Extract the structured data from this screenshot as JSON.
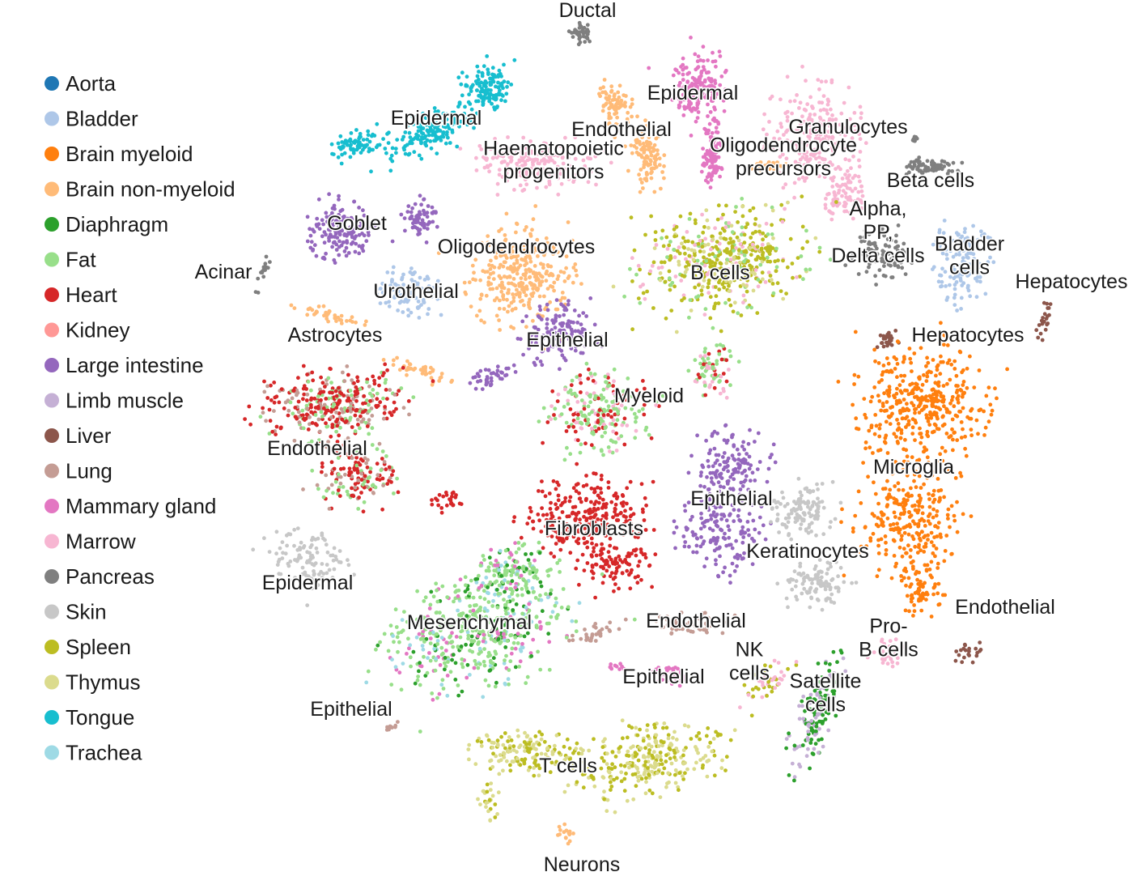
{
  "chart_data": {
    "type": "scatter",
    "title": "",
    "xlabel": "",
    "ylabel": "",
    "grid": false,
    "legend_position": "left",
    "series": [
      {
        "name": "Aorta",
        "color": "#1f77b4"
      },
      {
        "name": "Bladder",
        "color": "#aec7e8"
      },
      {
        "name": "Brain myeloid",
        "color": "#ff7f0e"
      },
      {
        "name": "Brain non-myeloid",
        "color": "#ffbb78"
      },
      {
        "name": "Diaphragm",
        "color": "#2ca02c"
      },
      {
        "name": "Fat",
        "color": "#98df8a"
      },
      {
        "name": "Heart",
        "color": "#d62728"
      },
      {
        "name": "Kidney",
        "color": "#ff9896"
      },
      {
        "name": "Large intestine",
        "color": "#9467bd"
      },
      {
        "name": "Limb muscle",
        "color": "#c5b0d5"
      },
      {
        "name": "Liver",
        "color": "#8c564b"
      },
      {
        "name": "Lung",
        "color": "#c49c94"
      },
      {
        "name": "Mammary gland",
        "color": "#e377c2"
      },
      {
        "name": "Marrow",
        "color": "#f7b6d2"
      },
      {
        "name": "Pancreas",
        "color": "#7f7f7f"
      },
      {
        "name": "Skin",
        "color": "#c7c7c7"
      },
      {
        "name": "Spleen",
        "color": "#bcbd22"
      },
      {
        "name": "Thymus",
        "color": "#dbdb8d"
      },
      {
        "name": "Tongue",
        "color": "#17becf"
      },
      {
        "name": "Trachea",
        "color": "#9edae5"
      }
    ],
    "clusters": [
      {
        "label": "Ductal",
        "tissues": [
          "Pancreas"
        ]
      },
      {
        "label": "Epidermal",
        "tissues": [
          "Tongue"
        ]
      },
      {
        "label": "Epidermal",
        "tissues": [
          "Mammary gland"
        ]
      },
      {
        "label": "Endothelial",
        "tissues": [
          "Brain non-myeloid"
        ]
      },
      {
        "label": "Granulocytes",
        "tissues": [
          "Marrow"
        ]
      },
      {
        "label": "Haematopoietic\nprogenitors",
        "tissues": [
          "Marrow"
        ]
      },
      {
        "label": "Oligodendrocyte\nprecursors",
        "tissues": [
          "Brain non-myeloid"
        ]
      },
      {
        "label": "Beta cells",
        "tissues": [
          "Pancreas"
        ]
      },
      {
        "label": "Goblet",
        "tissues": [
          "Large intestine"
        ]
      },
      {
        "label": "Oligodendrocytes",
        "tissues": [
          "Brain non-myeloid"
        ]
      },
      {
        "label": "Alpha,\nPP,\nDelta cells",
        "tissues": [
          "Pancreas"
        ]
      },
      {
        "label": "Bladder\ncells",
        "tissues": [
          "Bladder"
        ]
      },
      {
        "label": "Acinar",
        "tissues": [
          "Pancreas"
        ]
      },
      {
        "label": "B cells",
        "tissues": [
          "Spleen",
          "Marrow",
          "Fat",
          "Thymus"
        ]
      },
      {
        "label": "Hepatocytes",
        "tissues": [
          "Liver"
        ]
      },
      {
        "label": "Urothelial",
        "tissues": [
          "Bladder"
        ]
      },
      {
        "label": "Hepatocytes",
        "tissues": [
          "Liver"
        ]
      },
      {
        "label": "Astrocytes",
        "tissues": [
          "Brain non-myeloid"
        ]
      },
      {
        "label": "Epithelial",
        "tissues": [
          "Large intestine"
        ]
      },
      {
        "label": "Myeloid",
        "tissues": [
          "Fat",
          "Heart",
          "Marrow"
        ]
      },
      {
        "label": "Endothelial",
        "tissues": [
          "Heart",
          "Fat",
          "Lung"
        ]
      },
      {
        "label": "Microglia",
        "tissues": [
          "Brain myeloid"
        ]
      },
      {
        "label": "Epithelial",
        "tissues": [
          "Large intestine"
        ]
      },
      {
        "label": "Fibroblasts",
        "tissues": [
          "Heart"
        ]
      },
      {
        "label": "Keratinocytes",
        "tissues": [
          "Skin"
        ]
      },
      {
        "label": "Epidermal",
        "tissues": [
          "Skin"
        ]
      },
      {
        "label": "Mesenchymal",
        "tissues": [
          "Fat",
          "Diaphragm",
          "Mammary gland",
          "Trachea"
        ]
      },
      {
        "label": "Endothelial",
        "tissues": [
          "Lung"
        ]
      },
      {
        "label": "Endothelial",
        "tissues": [
          "Liver"
        ]
      },
      {
        "label": "Pro-\nB cells",
        "tissues": [
          "Marrow"
        ]
      },
      {
        "label": "NK\ncells",
        "tissues": [
          "Spleen",
          "Marrow"
        ]
      },
      {
        "label": "Epithelial",
        "tissues": [
          "Mammary gland"
        ]
      },
      {
        "label": "Satellite\ncells",
        "tissues": [
          "Diaphragm",
          "Limb muscle"
        ]
      },
      {
        "label": "Epithelial",
        "tissues": [
          "Lung"
        ]
      },
      {
        "label": "T cells",
        "tissues": [
          "Thymus",
          "Spleen"
        ]
      },
      {
        "label": "Neurons",
        "tissues": [
          "Brain non-myeloid"
        ]
      }
    ]
  }
}
